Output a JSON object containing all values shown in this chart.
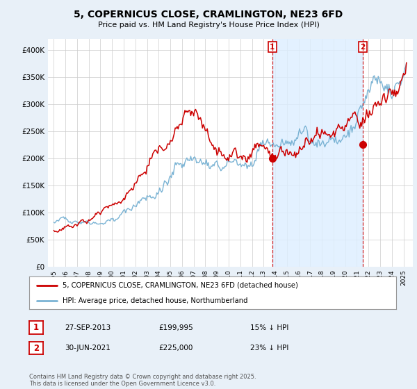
{
  "title": "5, COPERNICUS CLOSE, CRAMLINGTON, NE23 6FD",
  "subtitle": "Price paid vs. HM Land Registry's House Price Index (HPI)",
  "ylabel_ticks": [
    "£0",
    "£50K",
    "£100K",
    "£150K",
    "£200K",
    "£250K",
    "£300K",
    "£350K",
    "£400K"
  ],
  "ytick_values": [
    0,
    50000,
    100000,
    150000,
    200000,
    250000,
    300000,
    350000,
    400000
  ],
  "ylim": [
    0,
    420000
  ],
  "legend_line1": "5, COPERNICUS CLOSE, CRAMLINGTON, NE23 6FD (detached house)",
  "legend_line2": "HPI: Average price, detached house, Northumberland",
  "annotation1_label": "1",
  "annotation1_date": "27-SEP-2013",
  "annotation1_price": "£199,995",
  "annotation1_hpi": "15% ↓ HPI",
  "annotation2_label": "2",
  "annotation2_date": "30-JUN-2021",
  "annotation2_price": "£225,000",
  "annotation2_hpi": "23% ↓ HPI",
  "footer": "Contains HM Land Registry data © Crown copyright and database right 2025.\nThis data is licensed under the Open Government Licence v3.0.",
  "red_color": "#cc0000",
  "blue_color": "#7ab3d4",
  "vline_color": "#cc0000",
  "shade_color": "#ddeeff",
  "background_color": "#e8f0f8",
  "plot_bg_color": "#ffffff",
  "purchase1_x": 2013.75,
  "purchase1_y": 199995,
  "purchase2_x": 2021.5,
  "purchase2_y": 225000,
  "xlim": [
    1994.5,
    2025.8
  ],
  "xtick_years": [
    1995,
    1996,
    1997,
    1998,
    1999,
    2000,
    2001,
    2002,
    2003,
    2004,
    2005,
    2006,
    2007,
    2008,
    2009,
    2010,
    2011,
    2012,
    2013,
    2014,
    2015,
    2016,
    2017,
    2018,
    2019,
    2020,
    2021,
    2022,
    2023,
    2024,
    2025
  ]
}
